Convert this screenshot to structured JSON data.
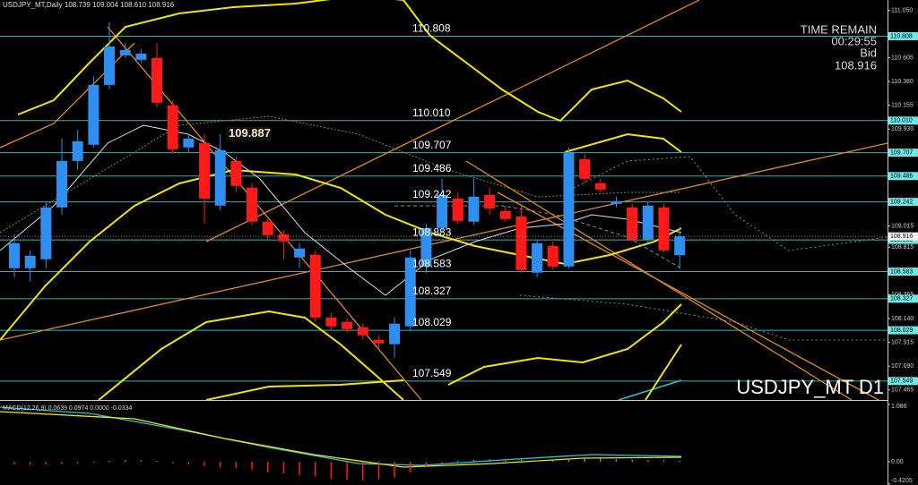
{
  "chart_data": [
    {
      "type": "candlestick",
      "title": "USDJPY_MT,Daily  108.739 109.004 108.610 108.916",
      "open": [
        108.615,
        108.615,
        108.7,
        109.19,
        109.629,
        109.782,
        110.348,
        110.627,
        110.585,
        110.602,
        110.154,
        109.756,
        109.799,
        109.207,
        109.629,
        109.376,
        109.055,
        108.936,
        108.717,
        108.742,
        108.15,
        108.108,
        108.057,
        107.939,
        107.897,
        108.066,
        108.632,
        108.995,
        109.274,
        109.055,
        109.308,
        109.156,
        109.105,
        108.573,
        108.826,
        108.632,
        109.646,
        109.418,
        109.224,
        109.19,
        108.886,
        109.19,
        108.739
      ],
      "high": [
        108.936,
        108.784,
        109.249,
        109.841,
        109.925,
        110.432,
        110.94,
        110.745,
        110.686,
        110.745,
        110.204,
        109.883,
        109.883,
        109.883,
        109.672,
        109.418,
        109.08,
        108.97,
        108.852,
        108.784,
        108.193,
        108.15,
        108.091,
        107.981,
        108.15,
        108.784,
        109.038,
        109.46,
        109.334,
        109.46,
        109.376,
        109.207,
        109.207,
        108.886,
        108.869,
        109.756,
        109.697,
        109.46,
        109.291,
        109.224,
        109.249,
        109.224,
        109.004
      ],
      "low": [
        108.531,
        108.488,
        108.615,
        109.122,
        109.545,
        109.756,
        110.306,
        110.602,
        110.559,
        110.137,
        109.697,
        109.714,
        109.038,
        109.164,
        109.334,
        109.021,
        108.886,
        108.7,
        108.615,
        108.108,
        108.023,
        108.006,
        107.939,
        107.854,
        107.77,
        108.023,
        108.573,
        108.953,
        109.038,
        109.021,
        109.122,
        109.055,
        108.573,
        108.531,
        108.598,
        108.615,
        109.418,
        109.334,
        109.19,
        108.869,
        108.852,
        108.767,
        108.61
      ],
      "close": [
        108.852,
        108.733,
        109.19,
        109.629,
        109.815,
        110.348,
        110.711,
        110.678,
        110.644,
        110.179,
        109.739,
        109.841,
        109.274,
        109.731,
        109.393,
        109.055,
        108.928,
        108.869,
        108.801,
        108.15,
        108.066,
        108.04,
        107.981,
        107.905,
        108.091,
        108.717,
        108.995,
        109.308,
        109.063,
        109.291,
        109.181,
        109.08,
        108.598,
        108.852,
        108.632,
        109.714,
        109.46,
        109.359,
        109.249,
        108.886,
        109.207,
        108.784,
        108.916
      ],
      "up_color": "#2f8ff0",
      "down_color": "#ff1a1a",
      "ylim": [
        107.37,
        111.15
      ],
      "yticks": [
        {
          "value": 111.05,
          "label": "111.050"
        },
        110.605,
        {
          "value": 110.38,
          "label": "110.380"
        },
        110.155,
        {
          "value": 109.93,
          "label": "109.930"
        },
        109.015,
        108.815,
        108.365,
        {
          "value": 108.14,
          "label": "108.140"
        },
        107.915,
        {
          "value": 107.69,
          "label": "107.690"
        },
        107.465
      ],
      "levels": [
        110.808,
        {
          "value": 110.01,
          "label": "110.010"
        },
        109.707,
        109.486,
        109.242,
        108.883,
        108.583,
        108.327,
        108.029,
        107.549
      ],
      "level_color": "#33b3b3",
      "high_marker": 109.887,
      "info": {
        "time_remain_label": "TIME REMAIN",
        "time_remain": "00:29:55",
        "bid_label": "Bid",
        "bid": 108.916
      },
      "watermark": "USDJPY_MT D1"
    },
    {
      "type": "macd",
      "title": "MACD(12,26,9) 0.0639 0.0974 0.0000 -0.0334",
      "values": [
        -0.05,
        -0.06,
        -0.05,
        -0.04,
        -0.03,
        -0.02,
        0.02,
        0.03,
        0.03,
        0.02,
        -0.03,
        -0.05,
        -0.08,
        -0.1,
        -0.12,
        -0.15,
        -0.2,
        -0.22,
        -0.25,
        -0.28,
        -0.32,
        -0.34,
        -0.35,
        -0.33,
        -0.3,
        -0.2,
        -0.1,
        -0.03,
        0.02,
        0.04,
        0.05,
        0.05,
        0.04,
        0.03,
        0.03,
        0.04,
        0.06,
        0.06,
        0.05,
        0.04,
        0.03,
        0.03,
        0.02
      ],
      "up_color": "#2f8ff0",
      "down_color": "#ff1a1a",
      "ylim": [
        -0.44,
        1.12
      ],
      "yticks": [
        1.086,
        {
          "value": 0,
          "label": "0.00"
        },
        -0.4205
      ]
    }
  ]
}
